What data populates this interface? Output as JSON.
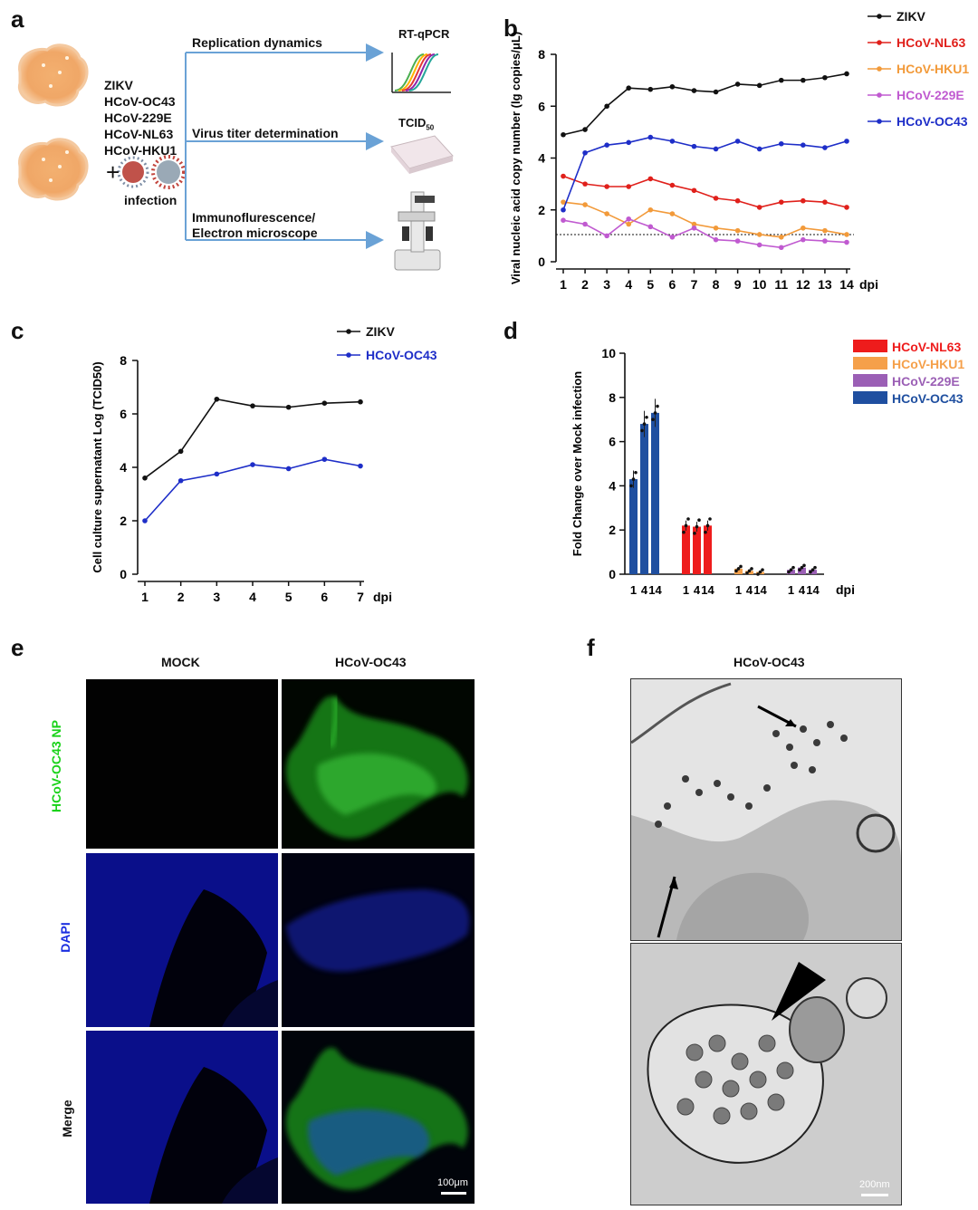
{
  "panels": {
    "a": {
      "letter": "a",
      "viruses": [
        "ZIKV",
        "HCoV-OC43",
        "HCoV-229E",
        "HCoV-NL63",
        "HCoV-HKU1"
      ],
      "plus": "+",
      "infection": "infection",
      "assays": [
        "Replication dynamics",
        "Virus titer determination",
        "Immunoflurescence/",
        "Electron microscope"
      ],
      "rtqpcr": "RT-qPCR",
      "tcid": "TCID",
      "tcid_sub": "50"
    },
    "b": {
      "letter": "b"
    },
    "c": {
      "letter": "c"
    },
    "d": {
      "letter": "d"
    },
    "e": {
      "letter": "e",
      "col_mock": "MOCK",
      "col_oc43": "HCoV-OC43",
      "row_np": "HCoV-OC43 NP",
      "row_dapi": "DAPI",
      "row_merge": "Merge",
      "scale": "100μm"
    },
    "f": {
      "letter": "f",
      "title": "HCoV-OC43",
      "scale": "200nm"
    }
  },
  "colors": {
    "zikv": "#111111",
    "nl63": "#e0201b",
    "hku1": "#f29a3a",
    "e229": "#c05ad0",
    "oc43": "#1e2ec8",
    "bar_oc43": "#1f4fa0",
    "bar_nl63": "#ee1c1c",
    "bar_hku1": "#f5a04a",
    "bar_229e": "#9b5fb5"
  },
  "chart_data": [
    {
      "id": "b",
      "type": "line",
      "ylabel": "Viral nucleic acid copy number (lg copies/μL)",
      "xlabel": "dpi",
      "x": [
        1,
        2,
        3,
        4,
        5,
        6,
        7,
        8,
        9,
        10,
        11,
        12,
        13,
        14
      ],
      "ylim": [
        0,
        8
      ],
      "yticks": [
        0,
        2,
        4,
        6,
        8
      ],
      "threshold": 1.05,
      "legend_position": "top-right",
      "series": [
        {
          "name": "ZIKV",
          "color": "#111111",
          "values": [
            4.9,
            5.1,
            6.0,
            6.7,
            6.65,
            6.75,
            6.6,
            6.55,
            6.85,
            6.8,
            7.0,
            7.0,
            7.1,
            7.25
          ]
        },
        {
          "name": "HCoV-NL63",
          "color": "#e0201b",
          "values": [
            3.3,
            3.0,
            2.9,
            2.9,
            3.2,
            2.95,
            2.75,
            2.45,
            2.35,
            2.1,
            2.3,
            2.35,
            2.3,
            2.1
          ]
        },
        {
          "name": "HCoV-HKU1",
          "color": "#f29a3a",
          "values": [
            2.3,
            2.2,
            1.85,
            1.45,
            2.0,
            1.85,
            1.45,
            1.3,
            1.2,
            1.05,
            0.95,
            1.3,
            1.2,
            1.05
          ]
        },
        {
          "name": "HCoV-229E",
          "color": "#c05ad0",
          "values": [
            1.6,
            1.45,
            1.0,
            1.65,
            1.35,
            0.95,
            1.3,
            0.85,
            0.8,
            0.65,
            0.55,
            0.85,
            0.8,
            0.75
          ]
        },
        {
          "name": "HCoV-OC43",
          "color": "#1e2ec8",
          "values": [
            2.0,
            4.2,
            4.5,
            4.6,
            4.8,
            4.65,
            4.45,
            4.35,
            4.65,
            4.35,
            4.55,
            4.5,
            4.4,
            4.65
          ]
        }
      ]
    },
    {
      "id": "c",
      "type": "line",
      "ylabel": "Cell culture supernatant Log (TCID50)",
      "xlabel": "dpi",
      "x": [
        1,
        2,
        3,
        4,
        5,
        6,
        7
      ],
      "ylim": [
        0,
        8
      ],
      "yticks": [
        0,
        2,
        4,
        6,
        8
      ],
      "legend_position": "top-right",
      "series": [
        {
          "name": "ZIKV",
          "color": "#111111",
          "values": [
            3.6,
            4.6,
            6.55,
            6.3,
            6.25,
            6.4,
            6.45
          ]
        },
        {
          "name": "HCoV-OC43",
          "color": "#1e2ec8",
          "values": [
            2.0,
            3.5,
            3.75,
            4.1,
            3.95,
            4.3,
            4.05
          ]
        }
      ]
    },
    {
      "id": "d",
      "type": "bar",
      "ylabel": "Fold Change over Mock infection",
      "xlabel": "dpi",
      "categories": [
        "1",
        "4",
        "14"
      ],
      "ylim": [
        0,
        10
      ],
      "yticks": [
        0,
        2,
        4,
        6,
        8,
        10
      ],
      "legend_position": "top-right",
      "series": [
        {
          "name": "HCoV-OC43",
          "color": "#1f4fa0",
          "values": [
            4.3,
            6.8,
            7.3
          ]
        },
        {
          "name": "HCoV-NL63",
          "color": "#ee1c1c",
          "values": [
            2.2,
            2.15,
            2.2
          ]
        },
        {
          "name": "HCoV-HKU1",
          "color": "#f5a04a",
          "values": [
            0.25,
            0.15,
            0.1
          ]
        },
        {
          "name": "HCoV-229E",
          "color": "#9b5fb5",
          "values": [
            0.2,
            0.3,
            0.2
          ]
        }
      ],
      "legend_order": [
        "HCoV-NL63",
        "HCoV-HKU1",
        "HCoV-229E",
        "HCoV-OC43"
      ]
    }
  ]
}
